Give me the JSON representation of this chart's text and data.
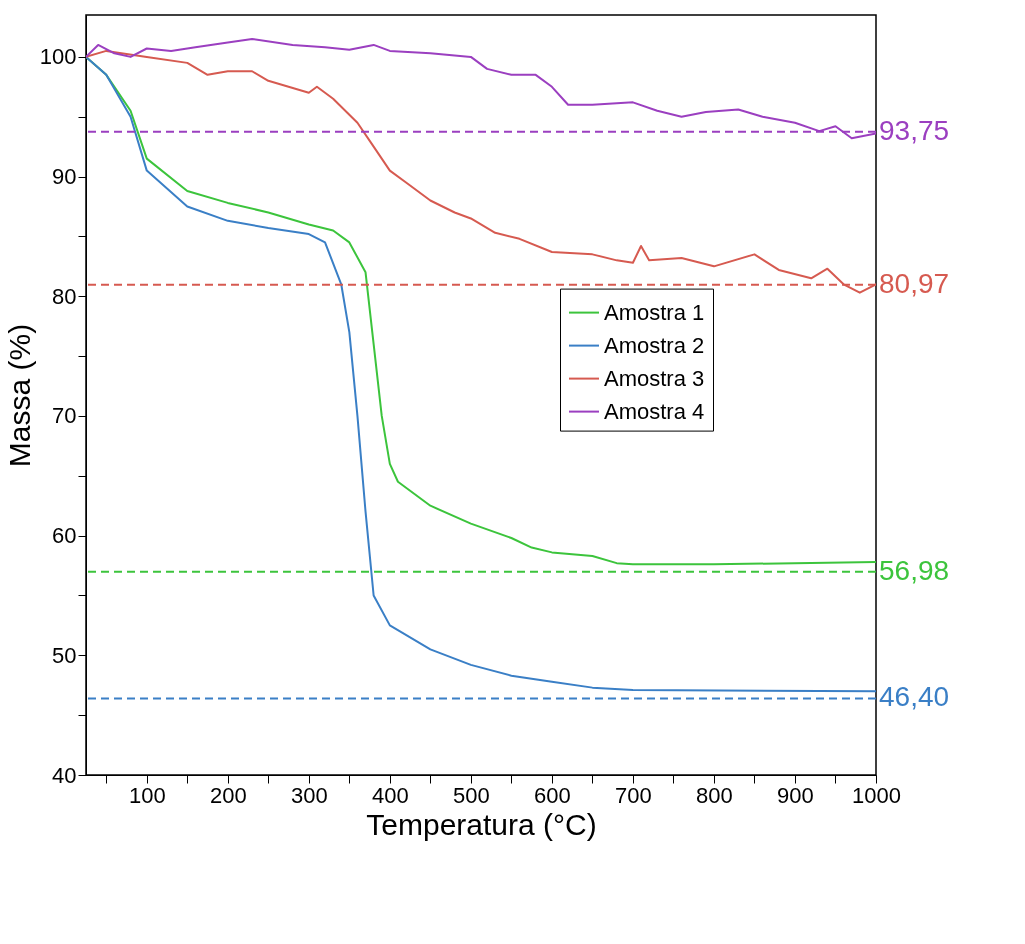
{
  "chart_data": {
    "type": "line",
    "xlabel": "Temperatura (°C)",
    "ylabel": "Massa (%)",
    "xlim": [
      25,
      1000
    ],
    "ylim": [
      40,
      103.5
    ],
    "xticks": [
      {
        "value": 50,
        "label": null
      },
      100,
      {
        "value": 150,
        "label": null
      },
      200,
      {
        "value": 250,
        "label": null
      },
      300,
      {
        "value": 350,
        "label": null
      },
      400,
      {
        "value": 450,
        "label": null
      },
      500,
      {
        "value": 550,
        "label": null
      },
      600,
      {
        "value": 650,
        "label": null
      },
      700,
      {
        "value": 750,
        "label": null
      },
      800,
      {
        "value": 850,
        "label": null
      },
      900,
      {
        "value": 950,
        "label": null
      },
      1000
    ],
    "yticks": [
      40,
      {
        "value": 45,
        "label": null
      },
      50,
      {
        "value": 55,
        "label": null
      },
      60,
      {
        "value": 65,
        "label": null
      },
      70,
      {
        "value": 75,
        "label": null
      },
      80,
      {
        "value": 85,
        "label": null
      },
      90,
      {
        "value": 95,
        "label": null
      },
      100
    ],
    "grid": false,
    "legend": "right",
    "line_style": "solid",
    "marker": "none",
    "series": [
      {
        "name": "Amostra 1",
        "color": "#3cc43c",
        "x": [
          25,
          50,
          80,
          100,
          150,
          200,
          250,
          300,
          330,
          350,
          370,
          380,
          390,
          400,
          410,
          450,
          500,
          550,
          575,
          600,
          650,
          680,
          700,
          800,
          1000
        ],
        "values": [
          100,
          98.5,
          95.5,
          91.5,
          88.8,
          87.8,
          87,
          86,
          85.5,
          84.5,
          82,
          76,
          70,
          66,
          64.5,
          62.5,
          61,
          59.8,
          59,
          58.6,
          58.3,
          57.7,
          57.6,
          57.6,
          57.8
        ]
      },
      {
        "name": "Amostra 2",
        "color": "#3a7fc6",
        "x": [
          25,
          50,
          80,
          100,
          150,
          200,
          250,
          300,
          320,
          340,
          350,
          360,
          370,
          380,
          400,
          450,
          500,
          550,
          600,
          650,
          700,
          1000
        ],
        "values": [
          100,
          98.5,
          95,
          90.5,
          87.5,
          86.3,
          85.7,
          85.2,
          84.5,
          81,
          77,
          70,
          62,
          55,
          52.5,
          50.5,
          49.2,
          48.3,
          47.8,
          47.3,
          47.1,
          47
        ]
      },
      {
        "name": "Amostra 3",
        "color": "#d65a50",
        "x": [
          25,
          50,
          100,
          150,
          175,
          200,
          230,
          250,
          300,
          310,
          330,
          360,
          380,
          400,
          420,
          450,
          480,
          500,
          530,
          560,
          600,
          650,
          680,
          700,
          710,
          720,
          760,
          800,
          850,
          880,
          920,
          940,
          960,
          980,
          1000
        ],
        "values": [
          100,
          100.5,
          100,
          99.5,
          98.5,
          98.8,
          98.8,
          98,
          97,
          97.5,
          96.5,
          94.5,
          92.5,
          90.5,
          89.5,
          88,
          87,
          86.5,
          85.3,
          84.8,
          83.7,
          83.5,
          83,
          82.8,
          84.2,
          83,
          83.2,
          82.5,
          83.5,
          82.2,
          81.5,
          82.3,
          81,
          80.3,
          81
        ]
      },
      {
        "name": "Amostra 4",
        "color": "#9b3fc0",
        "x": [
          25,
          40,
          60,
          80,
          100,
          130,
          160,
          200,
          230,
          280,
          320,
          350,
          380,
          400,
          450,
          500,
          520,
          550,
          580,
          600,
          620,
          650,
          700,
          730,
          760,
          790,
          830,
          860,
          900,
          930,
          950,
          970,
          1000
        ],
        "values": [
          100,
          101,
          100.3,
          100,
          100.7,
          100.5,
          100.8,
          101.2,
          101.5,
          101,
          100.8,
          100.6,
          101,
          100.5,
          100.3,
          100,
          99,
          98.5,
          98.5,
          97.5,
          96,
          96,
          96.2,
          95.5,
          95,
          95.4,
          95.6,
          95,
          94.5,
          93.8,
          94.2,
          93.2,
          93.6
        ]
      }
    ],
    "ref_lines": [
      {
        "axis": "y",
        "value": 93.75,
        "label": "93,75",
        "color": "#9b3fc0",
        "line_style": "dashed"
      },
      {
        "axis": "y",
        "value": 80.97,
        "label": "80,97",
        "color": "#d65a50",
        "line_style": "dashed"
      },
      {
        "axis": "y",
        "value": 56.98,
        "label": "56,98",
        "color": "#3cc43c",
        "line_style": "dashed"
      },
      {
        "axis": "y",
        "value": 46.4,
        "label": "46,40",
        "color": "#3a7fc6",
        "line_style": "dashed"
      }
    ]
  }
}
